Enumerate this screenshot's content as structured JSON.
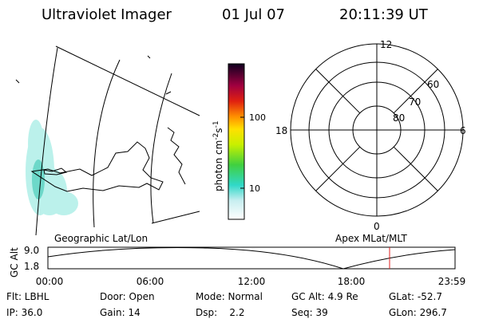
{
  "header": {
    "title": "Ultraviolet Imager",
    "date": "01 Jul 07",
    "time": "20:11:39 UT"
  },
  "colorbar": {
    "label": [
      "photon cm",
      "-2",
      "s",
      "-1"
    ],
    "ticks": [
      "100",
      "10"
    ]
  },
  "polar": {
    "mlt_labels": [
      "12",
      "18",
      "6",
      "0"
    ],
    "lat_labels": [
      "60",
      "70",
      "80"
    ]
  },
  "orbit": {
    "left_label": "Geographic Lat/Lon",
    "right_label": "Apex MLat/MLT",
    "y_label": "GC Alt",
    "yticks": [
      "9.0",
      "1.8"
    ],
    "xticks": [
      "00:00",
      "06:00",
      "12:00",
      "18:00",
      "23:59"
    ]
  },
  "status": {
    "rows": [
      [
        "Flt: LBHL",
        "Door: Open",
        "Mode: Normal",
        "GC Alt: 4.9 Re",
        "GLat: -52.7"
      ],
      [
        "IP: 36.0",
        "Gain: 14",
        "Dsp:    2.2",
        "Seq: 39",
        "GLon: 296.7"
      ]
    ]
  }
}
